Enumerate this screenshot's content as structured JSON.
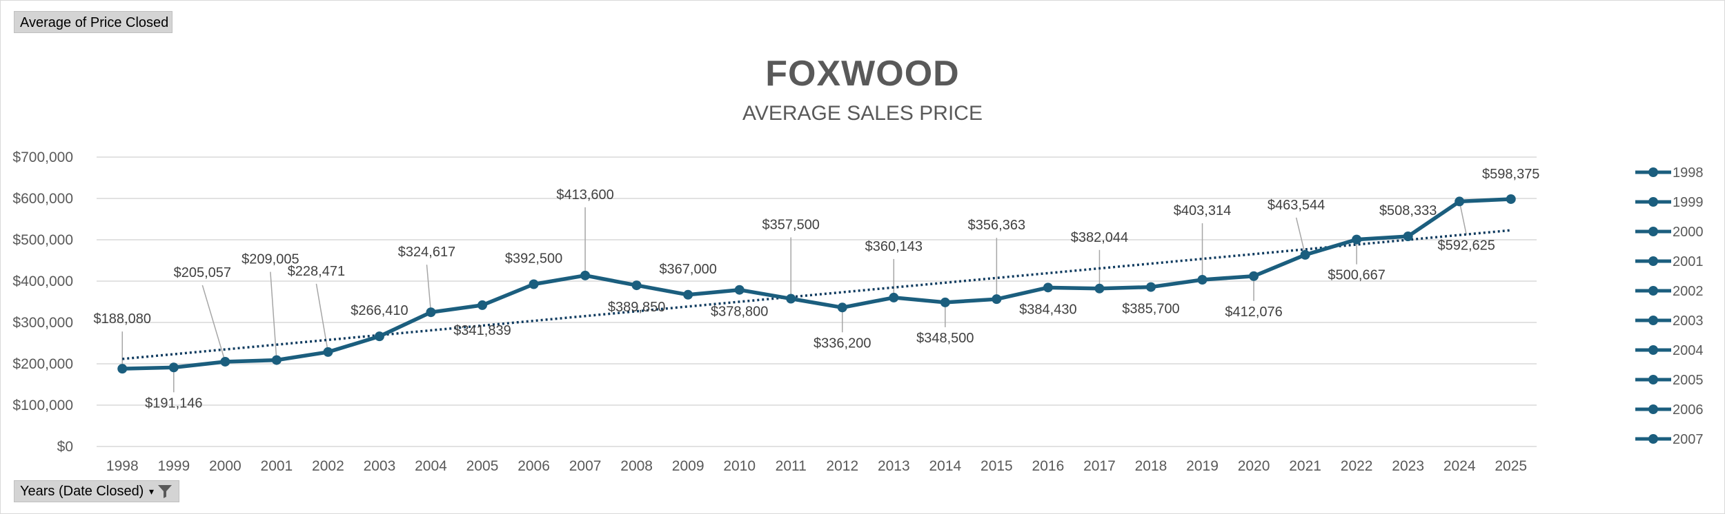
{
  "pivot": {
    "value_field_label": "Average of Price Closed",
    "axis_field_label": "Years (Date Closed)",
    "filter_icon": "funnel-icon"
  },
  "colors": {
    "series": "#1b5e7e",
    "trendline": "#0f3b5f",
    "grid": "#d9d9d9",
    "axis_text": "#595959",
    "label_text": "#404040",
    "leader": "#a6a6a6",
    "title": "#595959"
  },
  "chart_data": {
    "type": "line",
    "title": "FOXWOOD",
    "subtitle": "AVERAGE SALES PRICE",
    "xlabel": "",
    "ylabel": "",
    "ylim": [
      0,
      700000
    ],
    "yticks": [
      "$0",
      "$100,000",
      "$200,000",
      "$300,000",
      "$400,000",
      "$500,000",
      "$600,000",
      "$700,000"
    ],
    "grid": true,
    "trendline": "linear, dotted",
    "categories": [
      "1998",
      "1999",
      "2000",
      "2001",
      "2002",
      "2003",
      "2004",
      "2005",
      "2006",
      "2007",
      "2008",
      "2009",
      "2010",
      "2011",
      "2012",
      "2013",
      "2014",
      "2015",
      "2016",
      "2017",
      "2018",
      "2019",
      "2020",
      "2021",
      "2022",
      "2023",
      "2024",
      "2025"
    ],
    "series": [
      {
        "name": "Average of Price Closed",
        "values": [
          188080,
          191146,
          205057,
          209005,
          228471,
          266410,
          324617,
          341839,
          392500,
          413600,
          389850,
          367000,
          378800,
          357500,
          336200,
          360143,
          348500,
          356363,
          384430,
          382044,
          385700,
          403314,
          412076,
          463544,
          500667,
          508333,
          592625,
          598375
        ]
      }
    ],
    "data_labels": [
      "$188,080",
      "$191,146",
      "$205,057",
      "$209,005",
      "$228,471",
      "$266,410",
      "$324,617",
      "$341,839",
      "$392,500",
      "$413,600",
      "$389,850",
      "$367,000",
      "$378,800",
      "$357,500",
      "$336,200",
      "$360,143",
      "$348,500",
      "$356,363",
      "$384,430",
      "$382,044",
      "$385,700",
      "$403,314",
      "$412,076",
      "$463,544",
      "$500,667",
      "$508,333",
      "$592,625",
      "$598,375"
    ],
    "legend": {
      "placement": "right",
      "entries": [
        "1998",
        "1999",
        "2000",
        "2001",
        "2002",
        "2003",
        "2004",
        "2005",
        "2006",
        "2007"
      ]
    }
  }
}
